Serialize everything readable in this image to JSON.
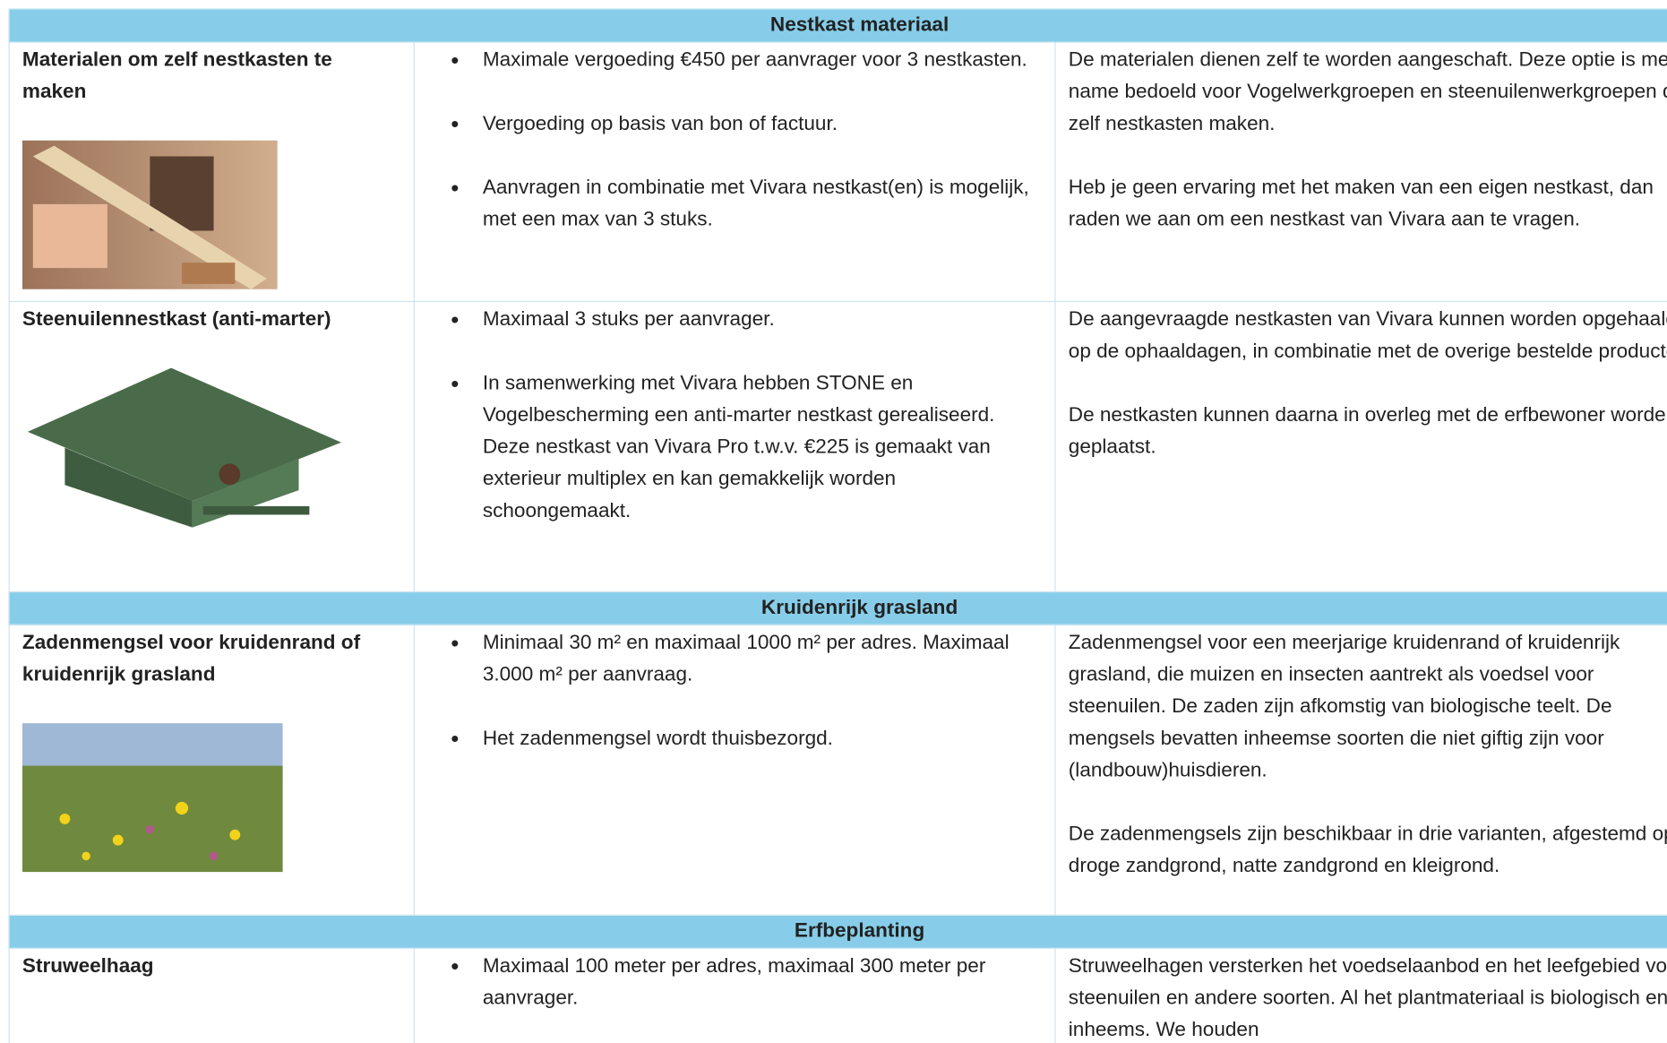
{
  "sections": [
    {
      "title": "Nestkast materiaal",
      "rows": [
        {
          "name": "Materialen om zelf nestkasten te maken",
          "bullets": [
            "Maximale vergoeding €450 per aanvrager voor 3 nestkasten.",
            "Vergoeding op basis van bon of factuur.",
            "Aanvragen in combinatie met Vivara nestkast(en) is mogelijk, met een max van 3 stuks."
          ],
          "description": [
            "De materialen dienen zelf te worden aangeschaft. Deze optie is met name bedoeld voor Vogelwerkgroepen en steenuilenwerkgroepen die zelf nestkasten maken.",
            "Heb je geen ervaring met het maken van een eigen nestkast, dan raden we aan om een nestkast van Vivara aan te vragen."
          ]
        },
        {
          "name": "Steenuilennestkast (anti-marter)",
          "bullets": [
            "Maximaal 3 stuks per aanvrager.",
            "In samenwerking met Vivara hebben STONE en Vogelbescherming een anti-marter nestkast gerealiseerd. Deze nestkast van Vivara Pro t.w.v. €225 is gemaakt van exterieur multiplex en kan gemakkelijk worden schoongemaakt."
          ],
          "description": [
            "De aangevraagde nestkasten van Vivara kunnen worden opgehaald op de ophaaldagen, in combinatie met de overige bestelde producten.",
            "De nestkasten kunnen daarna in overleg met de erfbewoner worden geplaatst."
          ]
        }
      ]
    },
    {
      "title": "Kruidenrijk grasland",
      "rows": [
        {
          "name": "Zadenmengsel voor kruidenrand of kruidenrijk grasland",
          "bullets": [
            "Minimaal 30 m² en maximaal 1000 m² per adres. Maximaal 3.000 m² per aanvraag.",
            "Het zadenmengsel wordt thuisbezorgd."
          ],
          "description": [
            "Zadenmengsel voor een meerjarige kruidenrand of kruidenrijk grasland, die muizen en insecten aantrekt als voedsel voor steenuilen. De zaden zijn afkomstig van biologische teelt. De mengsels bevatten inheemse soorten die niet giftig zijn voor (landbouw)huisdieren.",
            "De zadenmengsels zijn beschikbaar in drie varianten, afgestemd op droge zandgrond, natte zandgrond en kleigrond."
          ]
        }
      ]
    },
    {
      "title": "Erfbeplanting",
      "rows": [
        {
          "name": "Struweelhaag",
          "bullets": [
            "Maximaal 100 meter per adres, maximaal 300 meter per aanvrager."
          ],
          "description": [
            "Struweelhagen versterken het voedselaanbod en het leefgebied voor steenuilen en andere soorten. Al het plantmateriaal is biologisch en inheems. We houden"
          ]
        }
      ]
    }
  ]
}
